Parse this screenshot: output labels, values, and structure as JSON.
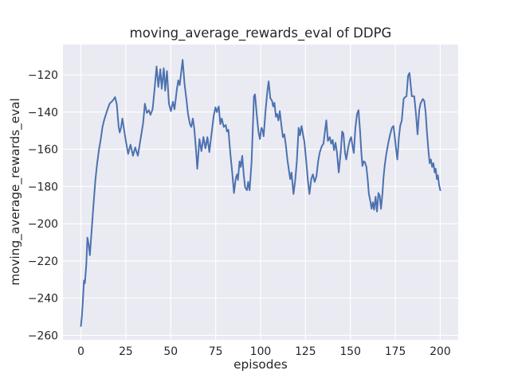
{
  "chart_data": {
    "type": "line",
    "title": "moving_average_rewards_eval of DDPG",
    "xlabel": "episodes",
    "ylabel": "moving_average_rewards_eval",
    "xlim": [
      -10,
      210
    ],
    "ylim": [
      -262.4,
      -103.75
    ],
    "xticks": [
      0,
      25,
      50,
      75,
      100,
      125,
      150,
      175,
      200
    ],
    "xtick_labels": [
      "0",
      "25",
      "50",
      "75",
      "100",
      "125",
      "150",
      "175",
      "200"
    ],
    "yticks": [
      -120,
      -140,
      -160,
      -180,
      -200,
      -220,
      -240,
      -260
    ],
    "ytick_labels": [
      "−120",
      "−140",
      "−160",
      "−180",
      "−200",
      "−220",
      "−240",
      "−260"
    ],
    "grid": true,
    "legend": "none",
    "style": "seaborn-darkgrid",
    "colors": {
      "line": "#4c72b0",
      "axes_background": "#eaeaf2",
      "grid": "#ffffff",
      "text": "#262626",
      "figure_background": "#ffffff"
    },
    "series": [
      {
        "name": "moving_average_rewards_eval",
        "points": [
          [
            0,
            -255
          ],
          [
            0.5,
            -250
          ],
          [
            1,
            -243
          ],
          [
            1.7,
            -230.5
          ],
          [
            2.2,
            -232
          ],
          [
            3,
            -222
          ],
          [
            3.6,
            -207.5
          ],
          [
            4.3,
            -211
          ],
          [
            5,
            -217
          ],
          [
            6,
            -203
          ],
          [
            7,
            -190
          ],
          [
            8,
            -177
          ],
          [
            9,
            -168
          ],
          [
            10,
            -160.5
          ],
          [
            11,
            -155
          ],
          [
            12,
            -148
          ],
          [
            13,
            -144
          ],
          [
            14,
            -141
          ],
          [
            15,
            -138
          ],
          [
            16,
            -135.5
          ],
          [
            17,
            -134.5
          ],
          [
            18,
            -133.5
          ],
          [
            19,
            -132
          ],
          [
            20,
            -136
          ],
          [
            21,
            -148
          ],
          [
            21.6,
            -151
          ],
          [
            22.3,
            -148.5
          ],
          [
            23.1,
            -143.5
          ],
          [
            24,
            -149.5
          ],
          [
            25,
            -155.5
          ],
          [
            26.3,
            -162.5
          ],
          [
            27.6,
            -157.5
          ],
          [
            29,
            -163.5
          ],
          [
            30.2,
            -159
          ],
          [
            31.7,
            -163.5
          ],
          [
            33.2,
            -154.5
          ],
          [
            34.6,
            -146
          ],
          [
            35.6,
            -135.5
          ],
          [
            36.7,
            -140.5
          ],
          [
            37.8,
            -139
          ],
          [
            38.7,
            -141.5
          ],
          [
            39.9,
            -138.5
          ],
          [
            40.9,
            -128.5
          ],
          [
            42.1,
            -115.5
          ],
          [
            43.1,
            -126.5
          ],
          [
            44.2,
            -117
          ],
          [
            45,
            -127.5
          ],
          [
            46.1,
            -116.5
          ],
          [
            46.9,
            -128.5
          ],
          [
            47.9,
            -118
          ],
          [
            49,
            -135.5
          ],
          [
            50.1,
            -139.5
          ],
          [
            51.2,
            -134.5
          ],
          [
            52.1,
            -138.5
          ],
          [
            53.4,
            -128
          ],
          [
            54.2,
            -123
          ],
          [
            55,
            -125.5
          ],
          [
            56.6,
            -112
          ],
          [
            57.7,
            -125
          ],
          [
            58.7,
            -133
          ],
          [
            59.6,
            -141
          ],
          [
            60.7,
            -146.5
          ],
          [
            61.4,
            -148
          ],
          [
            62.3,
            -143.5
          ],
          [
            63.1,
            -149
          ],
          [
            64.1,
            -161
          ],
          [
            64.8,
            -170.5
          ],
          [
            66,
            -154.5
          ],
          [
            67.1,
            -161
          ],
          [
            68.2,
            -153.5
          ],
          [
            69.3,
            -159.5
          ],
          [
            70.4,
            -153.5
          ],
          [
            71.5,
            -161.5
          ],
          [
            72.7,
            -151.5
          ],
          [
            73.9,
            -142
          ],
          [
            74.9,
            -137.5
          ],
          [
            75.7,
            -140
          ],
          [
            76.7,
            -137
          ],
          [
            77.6,
            -146.5
          ],
          [
            78.4,
            -143.5
          ],
          [
            79.5,
            -148
          ],
          [
            80.6,
            -147
          ],
          [
            81.3,
            -150.5
          ],
          [
            82.1,
            -149.5
          ],
          [
            83.2,
            -162.5
          ],
          [
            84.2,
            -172.5
          ],
          [
            85.2,
            -183.5
          ],
          [
            86.2,
            -175.5
          ],
          [
            86.9,
            -173.5
          ],
          [
            87.4,
            -176.5
          ],
          [
            88.3,
            -166.5
          ],
          [
            89,
            -169.5
          ],
          [
            89.8,
            -163.5
          ],
          [
            90.6,
            -173.5
          ],
          [
            91.4,
            -180.5
          ],
          [
            92.4,
            -182
          ],
          [
            93.1,
            -177.5
          ],
          [
            93.9,
            -182
          ],
          [
            95,
            -167
          ],
          [
            96.3,
            -131.5
          ],
          [
            96.9,
            -130.5
          ],
          [
            97.9,
            -142
          ],
          [
            98.8,
            -150.5
          ],
          [
            99.6,
            -154.5
          ],
          [
            100.5,
            -148.5
          ],
          [
            101.2,
            -150
          ],
          [
            101.7,
            -153
          ],
          [
            102.8,
            -139
          ],
          [
            103.8,
            -128.5
          ],
          [
            104.5,
            -123.5
          ],
          [
            105.4,
            -132.5
          ],
          [
            106.4,
            -134
          ],
          [
            107,
            -137
          ],
          [
            107.7,
            -135
          ],
          [
            108.5,
            -142.5
          ],
          [
            109.2,
            -141
          ],
          [
            109.9,
            -144.5
          ],
          [
            110.7,
            -139.5
          ],
          [
            111.6,
            -147.5
          ],
          [
            112.4,
            -153.5
          ],
          [
            113.2,
            -152
          ],
          [
            114,
            -157.5
          ],
          [
            115,
            -166
          ],
          [
            115.9,
            -172
          ],
          [
            116.5,
            -176
          ],
          [
            117.2,
            -172.5
          ],
          [
            118.3,
            -184
          ],
          [
            119.3,
            -176.5
          ],
          [
            120.2,
            -166.5
          ],
          [
            121.2,
            -148.5
          ],
          [
            121.9,
            -152.5
          ],
          [
            122.8,
            -147.5
          ],
          [
            123.7,
            -152.5
          ],
          [
            124.4,
            -156
          ],
          [
            125.4,
            -166.5
          ],
          [
            126.3,
            -176.5
          ],
          [
            127.2,
            -184
          ],
          [
            128.2,
            -176
          ],
          [
            129.1,
            -173.5
          ],
          [
            130.1,
            -177.5
          ],
          [
            131.1,
            -174.5
          ],
          [
            132.1,
            -166
          ],
          [
            133,
            -161.5
          ],
          [
            134,
            -158.5
          ],
          [
            135,
            -157
          ],
          [
            136.6,
            -144.5
          ],
          [
            137.5,
            -155.5
          ],
          [
            138.5,
            -153.5
          ],
          [
            139.3,
            -157
          ],
          [
            140.1,
            -155
          ],
          [
            140.9,
            -160.5
          ],
          [
            141.7,
            -156.5
          ],
          [
            142.5,
            -161.5
          ],
          [
            143.5,
            -172.5
          ],
          [
            144.6,
            -161.5
          ],
          [
            145.4,
            -150.5
          ],
          [
            146.1,
            -151.5
          ],
          [
            147,
            -162
          ],
          [
            147.7,
            -165.5
          ],
          [
            148.8,
            -159
          ],
          [
            149.6,
            -155.5
          ],
          [
            150.4,
            -153.5
          ],
          [
            151.3,
            -159
          ],
          [
            151.9,
            -162
          ],
          [
            152.8,
            -148.5
          ],
          [
            153.7,
            -141
          ],
          [
            154.5,
            -139
          ],
          [
            155.4,
            -150.5
          ],
          [
            156.1,
            -162
          ],
          [
            156.7,
            -169
          ],
          [
            157.4,
            -166.5
          ],
          [
            158.1,
            -167
          ],
          [
            158.9,
            -169.5
          ],
          [
            159.6,
            -176
          ],
          [
            160.3,
            -184
          ],
          [
            161.1,
            -188
          ],
          [
            161.8,
            -192
          ],
          [
            162.5,
            -188.5
          ],
          [
            163.2,
            -192.5
          ],
          [
            164,
            -185.5
          ],
          [
            164.8,
            -193.5
          ],
          [
            165.6,
            -183.5
          ],
          [
            166.3,
            -185
          ],
          [
            167,
            -192
          ],
          [
            167.8,
            -184
          ],
          [
            168.5,
            -174.5
          ],
          [
            169.2,
            -168
          ],
          [
            170,
            -162.5
          ],
          [
            171.1,
            -156.5
          ],
          [
            172.1,
            -152
          ],
          [
            173.1,
            -148.5
          ],
          [
            174,
            -147.5
          ],
          [
            174.7,
            -153.5
          ],
          [
            175.5,
            -160.5
          ],
          [
            176.1,
            -165.5
          ],
          [
            177,
            -153.5
          ],
          [
            177.7,
            -147.5
          ],
          [
            178.6,
            -144.5
          ],
          [
            179.6,
            -133
          ],
          [
            180.4,
            -132
          ],
          [
            181.2,
            -131.5
          ],
          [
            182.1,
            -120.5
          ],
          [
            182.9,
            -119
          ],
          [
            183.6,
            -126
          ],
          [
            184.2,
            -131.5
          ],
          [
            185.5,
            -131.5
          ],
          [
            186.5,
            -141
          ],
          [
            187.4,
            -152
          ],
          [
            188.3,
            -139
          ],
          [
            189,
            -135.5
          ],
          [
            190.3,
            -133
          ],
          [
            191.1,
            -134
          ],
          [
            191.9,
            -140.5
          ],
          [
            192.6,
            -151
          ],
          [
            193.4,
            -160.5
          ],
          [
            194.1,
            -167.5
          ],
          [
            194.8,
            -165.5
          ],
          [
            195.5,
            -169.5
          ],
          [
            196.2,
            -167.5
          ],
          [
            196.9,
            -172.5
          ],
          [
            197.5,
            -170.5
          ],
          [
            198.1,
            -176
          ],
          [
            198.7,
            -174
          ],
          [
            199.4,
            -179.5
          ],
          [
            200,
            -182
          ]
        ]
      }
    ]
  }
}
